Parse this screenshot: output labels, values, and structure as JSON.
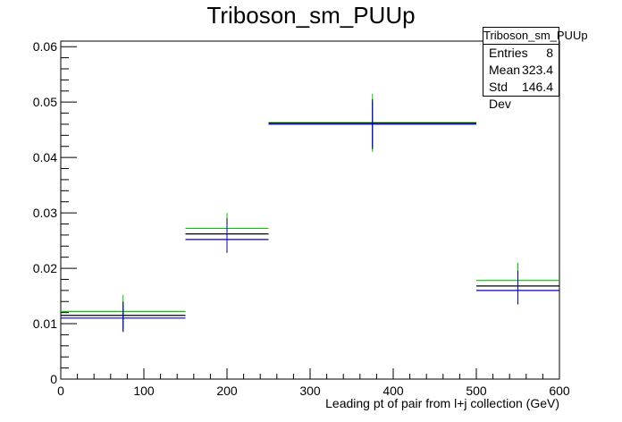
{
  "title": "Triboson_sm_PUUp",
  "stats": {
    "name": "Triboson_sm_PUUp",
    "rows": [
      {
        "label": "Entries",
        "value": "8"
      },
      {
        "label": "Mean",
        "value": "323.4"
      },
      {
        "label": "Std Dev",
        "value": "146.4"
      }
    ]
  },
  "chart_data": {
    "type": "scatter",
    "title": "Triboson_sm_PUUp",
    "xlabel": "Leading pt of pair from l+j collection (GeV)",
    "ylabel": "",
    "xlim": [
      0,
      600
    ],
    "ylim": [
      0,
      0.061
    ],
    "xticks": [
      0,
      100,
      200,
      300,
      400,
      500,
      600
    ],
    "xtick_labels": [
      "0",
      "100",
      "200",
      "300",
      "400",
      "500",
      "600"
    ],
    "yticks": [
      0,
      0.01,
      0.02,
      0.03,
      0.04,
      0.05,
      0.06
    ],
    "ytick_labels": [
      "0",
      "0.01",
      "0.02",
      "0.03",
      "0.04",
      "0.05",
      "0.06"
    ],
    "grid": false,
    "legend": "top-right statistics box",
    "bins": [
      {
        "x_low": 0,
        "x_high": 150,
        "x_center": 75
      },
      {
        "x_low": 150,
        "x_high": 250,
        "x_center": 200
      },
      {
        "x_low": 250,
        "x_high": 500,
        "x_center": 375
      },
      {
        "x_low": 500,
        "x_high": 600,
        "x_center": 550
      }
    ],
    "series": [
      {
        "color": "#00cc00",
        "values": [
          0.0122,
          0.0272,
          0.0463,
          0.0178
        ],
        "err_low": [
          0.009,
          0.024,
          0.041,
          0.0148
        ],
        "err_high": [
          0.0152,
          0.03,
          0.0515,
          0.021
        ]
      },
      {
        "color": "#000000",
        "values": [
          0.0115,
          0.0262,
          0.0462,
          0.0168
        ],
        "err_low": [
          0.0085,
          0.0228,
          0.0415,
          0.0135
        ],
        "err_high": [
          0.014,
          0.029,
          0.0505,
          0.0195
        ]
      },
      {
        "color": "#0000cc",
        "values": [
          0.011,
          0.0252,
          0.046,
          0.016
        ],
        "err_low": [
          0.0087,
          0.0232,
          0.0418,
          0.0138
        ],
        "err_high": [
          0.0135,
          0.028,
          0.05,
          0.019
        ]
      }
    ]
  }
}
